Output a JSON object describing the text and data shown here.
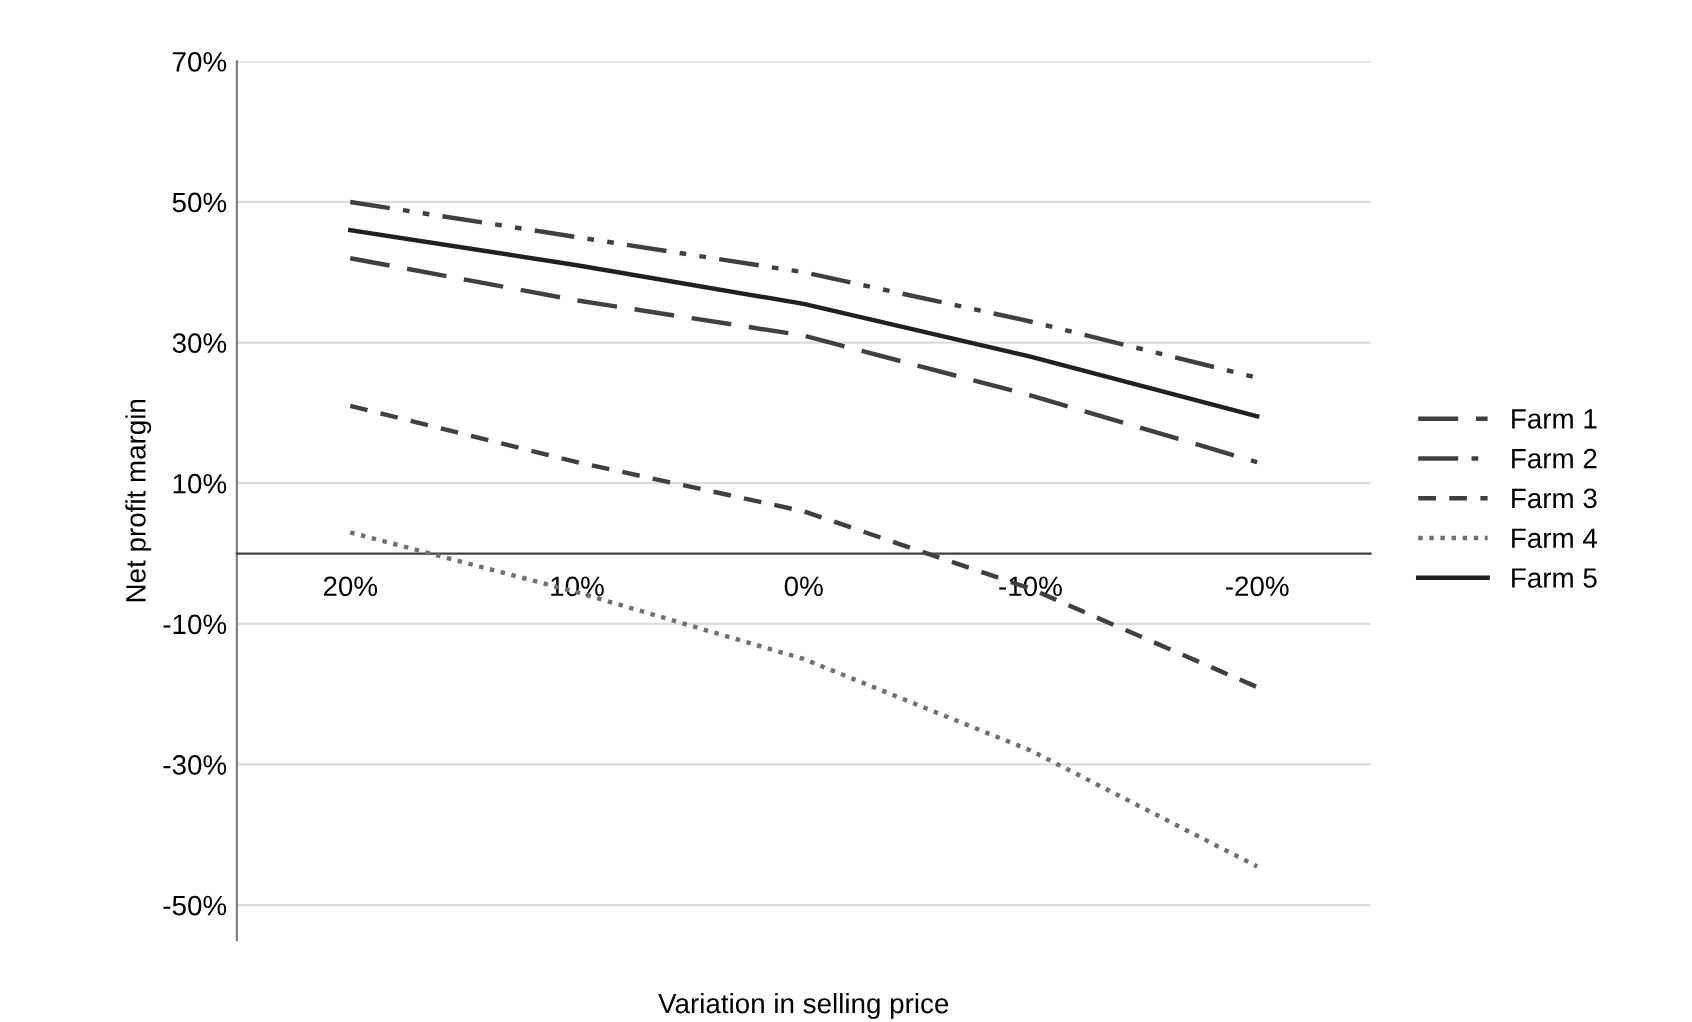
{
  "chart_data": {
    "type": "line",
    "xlabel": "Variation in selling price",
    "ylabel": "Net profit margin",
    "categories": [
      "20%",
      "10%",
      "0%",
      "-10%",
      "-20%"
    ],
    "series": [
      {
        "name": "Farm 1",
        "color": "#404040",
        "line_style": "longdash",
        "values": [
          42,
          36,
          31,
          22.5,
          13
        ]
      },
      {
        "name": "Farm 2",
        "color": "#404040",
        "line_style": "dashdotdot",
        "values": [
          50,
          45,
          40,
          33,
          25
        ]
      },
      {
        "name": "Farm 3",
        "color": "#404040",
        "line_style": "dashed",
        "values": [
          21,
          13,
          6,
          -5,
          -19
        ]
      },
      {
        "name": "Farm 4",
        "color": "#707070",
        "line_style": "dotted",
        "values": [
          3,
          -5.5,
          -15,
          -28,
          -44.5
        ]
      },
      {
        "name": "Farm 5",
        "color": "#202020",
        "line_style": "solid",
        "values": [
          46,
          41,
          35.5,
          28,
          19.5
        ]
      }
    ],
    "ylim": [
      -55,
      70
    ],
    "yticks": [
      {
        "value": 70,
        "label": "70%"
      },
      {
        "value": 50,
        "label": "50%"
      },
      {
        "value": 30,
        "label": "30%"
      },
      {
        "value": 10,
        "label": "10%"
      },
      {
        "value": -10,
        "label": "-10%"
      },
      {
        "value": -30,
        "label": "-30%"
      },
      {
        "value": -50,
        "label": "-50%"
      }
    ],
    "grid": "y",
    "legend": "right",
    "marker": "none"
  }
}
